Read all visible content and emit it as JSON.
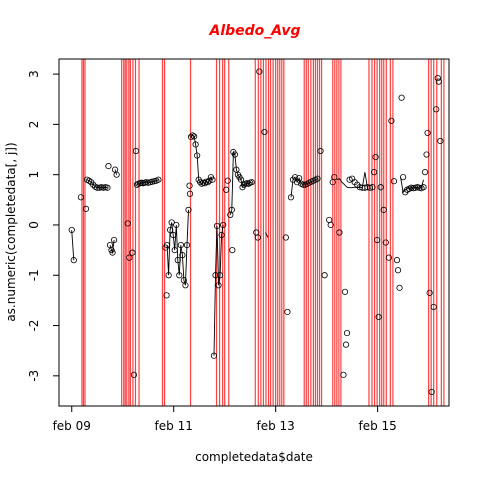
{
  "chart_data": {
    "type": "scatter",
    "title": "Albedo_Avg",
    "title_color": "#ff0000",
    "xlabel": "completedata$date",
    "ylabel": "as.numeric(completedata[, j])",
    "xlim": [
      -0.25,
      7.4
    ],
    "ylim": [
      -3.6,
      3.3
    ],
    "xticks": [
      {
        "value": 0,
        "label": "feb 09"
      },
      {
        "value": 2,
        "label": "feb 11"
      },
      {
        "value": 4,
        "label": "feb 13"
      },
      {
        "value": 6,
        "label": "feb 15"
      }
    ],
    "yticks": [
      {
        "value": -3,
        "label": "-3"
      },
      {
        "value": -2,
        "label": "-2"
      },
      {
        "value": -1,
        "label": "-1"
      },
      {
        "value": 0,
        "label": "0"
      },
      {
        "value": 1,
        "label": "1"
      },
      {
        "value": 2,
        "label": "2"
      },
      {
        "value": 3,
        "label": "3"
      }
    ],
    "vline_color": "#ff2020",
    "point_color": "#000000",
    "vlines": [
      0.2,
      0.23,
      0.26,
      0.98,
      1.02,
      1.05,
      1.08,
      1.12,
      1.15,
      1.2,
      1.25,
      1.32,
      1.78,
      1.82,
      2.33,
      2.84,
      2.9,
      2.96,
      3.0,
      3.08,
      3.6,
      3.66,
      3.71,
      3.76,
      3.81,
      3.86,
      3.9,
      3.95,
      4.0,
      4.04,
      4.08,
      4.12,
      4.16,
      4.56,
      4.6,
      4.64,
      4.69,
      4.74,
      4.78,
      4.82,
      4.86,
      4.9,
      5.12,
      5.16,
      5.2,
      5.24,
      5.28,
      5.83,
      5.89,
      5.94,
      5.99,
      6.04,
      6.08,
      6.12,
      6.17,
      6.25,
      6.3,
      7.0,
      7.05,
      7.1,
      7.16,
      7.25,
      7.3
    ],
    "segments": [
      {
        "x": [
          0.0,
          0.04
        ],
        "y": [
          -0.1,
          -0.7
        ]
      },
      {
        "x": [
          0.3,
          0.34,
          0.38,
          0.42,
          0.46,
          0.5,
          0.54,
          0.58,
          0.62,
          0.66,
          0.7
        ],
        "y": [
          0.9,
          0.88,
          0.85,
          0.8,
          0.76,
          0.74,
          0.74,
          0.75,
          0.74,
          0.75,
          0.74
        ]
      },
      {
        "x": [
          0.75,
          0.78,
          0.8,
          0.83
        ],
        "y": [
          -0.4,
          -0.5,
          -0.55,
          -0.3
        ]
      },
      {
        "x": [
          0.85,
          0.88
        ],
        "y": [
          1.1,
          1.0
        ]
      },
      {
        "x": [
          1.28,
          1.31,
          1.34,
          1.37,
          1.4,
          1.43,
          1.46,
          1.5,
          1.54,
          1.58,
          1.62,
          1.66,
          1.7
        ],
        "y": [
          0.8,
          0.82,
          0.83,
          0.84,
          0.83,
          0.84,
          0.85,
          0.84,
          0.85,
          0.86,
          0.87,
          0.88,
          0.9
        ]
      },
      {
        "x": [
          1.87,
          1.9,
          1.93,
          1.96,
          1.99,
          2.02,
          2.05,
          2.08,
          2.11,
          2.14,
          2.17,
          2.2,
          2.23,
          2.26,
          2.29
        ],
        "y": [
          -0.4,
          -1.0,
          -0.1,
          0.05,
          -0.2,
          -0.5,
          0.0,
          -0.7,
          -1.0,
          -0.4,
          -0.6,
          -1.1,
          -1.2,
          -0.4,
          0.3
        ]
      },
      {
        "x": [
          2.34,
          2.37,
          2.4,
          2.43,
          2.46,
          2.49,
          2.52,
          2.55,
          2.58,
          2.61,
          2.64,
          2.67,
          2.7,
          2.73,
          2.76
        ],
        "y": [
          1.75,
          1.78,
          1.76,
          1.6,
          1.38,
          0.9,
          0.85,
          0.82,
          0.84,
          0.83,
          0.86,
          0.85,
          0.88,
          0.95,
          0.9
        ]
      },
      {
        "x": [
          2.79,
          2.82,
          2.85,
          2.88,
          2.91,
          2.94,
          2.97
        ],
        "y": [
          -2.6,
          -1.0,
          -0.02,
          -1.2,
          -1.0,
          -0.2,
          0.0
        ]
      },
      {
        "x": [
          3.11,
          3.14,
          3.17,
          3.2,
          3.23,
          3.26,
          3.29,
          3.32,
          3.35,
          3.38,
          3.41,
          3.44,
          3.47,
          3.5,
          3.53
        ],
        "y": [
          0.2,
          0.3,
          1.45,
          1.4,
          1.1,
          1.0,
          0.95,
          0.9,
          0.75,
          0.8,
          0.82,
          0.83,
          0.82,
          0.84,
          0.85
        ]
      },
      {
        "x": [
          3.8,
          3.85
        ],
        "y": [
          -0.15,
          -0.25
        ]
      },
      {
        "x": [
          4.3,
          4.34,
          4.38,
          4.42,
          4.46,
          4.5,
          4.54
        ],
        "y": [
          0.55,
          0.9,
          0.95,
          0.85,
          0.93,
          0.82,
          0.8
        ]
      },
      {
        "x": [
          4.58,
          4.62,
          4.66,
          4.7,
          4.74,
          4.78,
          4.82
        ],
        "y": [
          0.8,
          0.82,
          0.84,
          0.86,
          0.88,
          0.9,
          0.92
        ]
      },
      {
        "x": [
          5.2,
          5.25,
          5.3,
          5.35,
          5.4,
          5.45,
          5.5,
          5.55,
          5.6,
          5.65,
          5.7,
          5.75,
          5.8
        ],
        "y": [
          0.9,
          0.92,
          0.85,
          0.8,
          0.75,
          0.74,
          0.74,
          0.75,
          0.74,
          0.75,
          0.74,
          1.05,
          0.75
        ]
      },
      {
        "x": [
          6.45,
          6.5,
          6.54,
          6.58,
          6.62,
          6.66,
          6.7,
          6.74,
          6.78,
          6.82,
          6.86,
          6.9
        ],
        "y": [
          0.95,
          0.65,
          0.7,
          0.72,
          0.74,
          0.73,
          0.74,
          0.75,
          0.74,
          0.73,
          0.75,
          0.9
        ]
      }
    ],
    "points": [
      {
        "x": 0.0,
        "y": -0.1
      },
      {
        "x": 0.04,
        "y": -0.7
      },
      {
        "x": 0.18,
        "y": 0.55
      },
      {
        "x": 0.28,
        "y": 0.32
      },
      {
        "x": 0.3,
        "y": 0.9
      },
      {
        "x": 0.34,
        "y": 0.88
      },
      {
        "x": 0.38,
        "y": 0.85
      },
      {
        "x": 0.42,
        "y": 0.8
      },
      {
        "x": 0.46,
        "y": 0.76
      },
      {
        "x": 0.5,
        "y": 0.74
      },
      {
        "x": 0.54,
        "y": 0.74
      },
      {
        "x": 0.58,
        "y": 0.75
      },
      {
        "x": 0.62,
        "y": 0.74
      },
      {
        "x": 0.66,
        "y": 0.75
      },
      {
        "x": 0.7,
        "y": 0.74
      },
      {
        "x": 0.72,
        "y": 1.17
      },
      {
        "x": 0.75,
        "y": -0.4
      },
      {
        "x": 0.78,
        "y": -0.5
      },
      {
        "x": 0.8,
        "y": -0.55
      },
      {
        "x": 0.83,
        "y": -0.3
      },
      {
        "x": 0.85,
        "y": 1.1
      },
      {
        "x": 0.88,
        "y": 1.0
      },
      {
        "x": 1.1,
        "y": 0.03
      },
      {
        "x": 1.13,
        "y": -0.65
      },
      {
        "x": 1.19,
        "y": -0.55
      },
      {
        "x": 1.22,
        "y": -2.98
      },
      {
        "x": 1.26,
        "y": 1.47
      },
      {
        "x": 1.28,
        "y": 0.8
      },
      {
        "x": 1.31,
        "y": 0.82
      },
      {
        "x": 1.34,
        "y": 0.83
      },
      {
        "x": 1.37,
        "y": 0.84
      },
      {
        "x": 1.4,
        "y": 0.83
      },
      {
        "x": 1.43,
        "y": 0.84
      },
      {
        "x": 1.46,
        "y": 0.85
      },
      {
        "x": 1.5,
        "y": 0.84
      },
      {
        "x": 1.54,
        "y": 0.85
      },
      {
        "x": 1.58,
        "y": 0.86
      },
      {
        "x": 1.62,
        "y": 0.87
      },
      {
        "x": 1.66,
        "y": 0.88
      },
      {
        "x": 1.7,
        "y": 0.9
      },
      {
        "x": 1.84,
        "y": -0.45
      },
      {
        "x": 1.86,
        "y": -1.4
      },
      {
        "x": 1.87,
        "y": -0.4
      },
      {
        "x": 1.9,
        "y": -1.0
      },
      {
        "x": 1.93,
        "y": -0.1
      },
      {
        "x": 1.96,
        "y": 0.05
      },
      {
        "x": 1.99,
        "y": -0.2
      },
      {
        "x": 2.02,
        "y": -0.5
      },
      {
        "x": 2.05,
        "y": 0.0
      },
      {
        "x": 2.08,
        "y": -0.7
      },
      {
        "x": 2.11,
        "y": -1.0
      },
      {
        "x": 2.14,
        "y": -0.4
      },
      {
        "x": 2.17,
        "y": -0.6
      },
      {
        "x": 2.2,
        "y": -1.1
      },
      {
        "x": 2.23,
        "y": -1.2
      },
      {
        "x": 2.26,
        "y": -0.4
      },
      {
        "x": 2.29,
        "y": 0.3
      },
      {
        "x": 2.31,
        "y": 0.78
      },
      {
        "x": 2.32,
        "y": 0.62
      },
      {
        "x": 2.34,
        "y": 1.75
      },
      {
        "x": 2.37,
        "y": 1.78
      },
      {
        "x": 2.4,
        "y": 1.76
      },
      {
        "x": 2.43,
        "y": 1.6
      },
      {
        "x": 2.46,
        "y": 1.38
      },
      {
        "x": 2.49,
        "y": 0.9
      },
      {
        "x": 2.52,
        "y": 0.85
      },
      {
        "x": 2.55,
        "y": 0.82
      },
      {
        "x": 2.58,
        "y": 0.84
      },
      {
        "x": 2.61,
        "y": 0.83
      },
      {
        "x": 2.64,
        "y": 0.86
      },
      {
        "x": 2.67,
        "y": 0.85
      },
      {
        "x": 2.7,
        "y": 0.88
      },
      {
        "x": 2.73,
        "y": 0.95
      },
      {
        "x": 2.76,
        "y": 0.9
      },
      {
        "x": 2.79,
        "y": -2.6
      },
      {
        "x": 2.82,
        "y": -1.0
      },
      {
        "x": 2.85,
        "y": -0.02
      },
      {
        "x": 2.88,
        "y": -1.2
      },
      {
        "x": 2.91,
        "y": -1.0
      },
      {
        "x": 2.94,
        "y": -0.2
      },
      {
        "x": 2.97,
        "y": 0.0
      },
      {
        "x": 3.03,
        "y": 0.7
      },
      {
        "x": 3.06,
        "y": 0.88
      },
      {
        "x": 3.11,
        "y": 0.2
      },
      {
        "x": 3.14,
        "y": 0.3
      },
      {
        "x": 3.17,
        "y": 1.45
      },
      {
        "x": 3.2,
        "y": 1.4
      },
      {
        "x": 3.23,
        "y": 1.1
      },
      {
        "x": 3.26,
        "y": 1.0
      },
      {
        "x": 3.29,
        "y": 0.95
      },
      {
        "x": 3.32,
        "y": 0.9
      },
      {
        "x": 3.35,
        "y": 0.75
      },
      {
        "x": 3.38,
        "y": 0.8
      },
      {
        "x": 3.41,
        "y": 0.82
      },
      {
        "x": 3.44,
        "y": 0.83
      },
      {
        "x": 3.47,
        "y": 0.82
      },
      {
        "x": 3.5,
        "y": 0.84
      },
      {
        "x": 3.53,
        "y": 0.85
      },
      {
        "x": 3.15,
        "y": -0.5
      },
      {
        "x": 3.62,
        "y": -0.15
      },
      {
        "x": 3.65,
        "y": -0.25
      },
      {
        "x": 3.68,
        "y": 3.05
      },
      {
        "x": 3.78,
        "y": 1.85
      },
      {
        "x": 4.2,
        "y": -0.25
      },
      {
        "x": 4.23,
        "y": -1.73
      },
      {
        "x": 4.3,
        "y": 0.55
      },
      {
        "x": 4.34,
        "y": 0.9
      },
      {
        "x": 4.38,
        "y": 0.95
      },
      {
        "x": 4.42,
        "y": 0.85
      },
      {
        "x": 4.46,
        "y": 0.93
      },
      {
        "x": 4.5,
        "y": 0.82
      },
      {
        "x": 4.54,
        "y": 0.8
      },
      {
        "x": 4.58,
        "y": 0.8
      },
      {
        "x": 4.62,
        "y": 0.82
      },
      {
        "x": 4.66,
        "y": 0.84
      },
      {
        "x": 4.7,
        "y": 0.86
      },
      {
        "x": 4.74,
        "y": 0.88
      },
      {
        "x": 4.78,
        "y": 0.9
      },
      {
        "x": 4.82,
        "y": 0.92
      },
      {
        "x": 4.88,
        "y": 1.47
      },
      {
        "x": 4.96,
        "y": -1.0
      },
      {
        "x": 5.05,
        "y": 0.1
      },
      {
        "x": 5.08,
        "y": 0.0
      },
      {
        "x": 5.12,
        "y": 0.85
      },
      {
        "x": 5.15,
        "y": 0.95
      },
      {
        "x": 5.25,
        "y": -0.15
      },
      {
        "x": 5.33,
        "y": -2.98
      },
      {
        "x": 5.36,
        "y": -1.33
      },
      {
        "x": 5.38,
        "y": -2.38
      },
      {
        "x": 5.4,
        "y": -2.15
      },
      {
        "x": 5.45,
        "y": 0.9
      },
      {
        "x": 5.5,
        "y": 0.92
      },
      {
        "x": 5.55,
        "y": 0.85
      },
      {
        "x": 5.6,
        "y": 0.8
      },
      {
        "x": 5.65,
        "y": 0.75
      },
      {
        "x": 5.7,
        "y": 0.74
      },
      {
        "x": 5.75,
        "y": 0.74
      },
      {
        "x": 5.8,
        "y": 0.75
      },
      {
        "x": 5.85,
        "y": 0.74
      },
      {
        "x": 5.9,
        "y": 0.75
      },
      {
        "x": 5.93,
        "y": 1.05
      },
      {
        "x": 5.96,
        "y": 1.35
      },
      {
        "x": 5.99,
        "y": -0.3
      },
      {
        "x": 6.02,
        "y": -1.83
      },
      {
        "x": 6.06,
        "y": 0.75
      },
      {
        "x": 6.12,
        "y": 0.3
      },
      {
        "x": 6.16,
        "y": -0.35
      },
      {
        "x": 6.22,
        "y": -0.65
      },
      {
        "x": 6.27,
        "y": 2.07
      },
      {
        "x": 6.32,
        "y": 0.87
      },
      {
        "x": 6.38,
        "y": -0.7
      },
      {
        "x": 6.4,
        "y": -0.9
      },
      {
        "x": 6.43,
        "y": -1.25
      },
      {
        "x": 6.47,
        "y": 2.53
      },
      {
        "x": 6.5,
        "y": 0.95
      },
      {
        "x": 6.54,
        "y": 0.65
      },
      {
        "x": 6.58,
        "y": 0.7
      },
      {
        "x": 6.62,
        "y": 0.72
      },
      {
        "x": 6.66,
        "y": 0.74
      },
      {
        "x": 6.7,
        "y": 0.73
      },
      {
        "x": 6.74,
        "y": 0.74
      },
      {
        "x": 6.78,
        "y": 0.75
      },
      {
        "x": 6.82,
        "y": 0.74
      },
      {
        "x": 6.86,
        "y": 0.73
      },
      {
        "x": 6.9,
        "y": 0.75
      },
      {
        "x": 6.93,
        "y": 1.05
      },
      {
        "x": 6.96,
        "y": 1.4
      },
      {
        "x": 6.98,
        "y": 1.83
      },
      {
        "x": 7.02,
        "y": -1.35
      },
      {
        "x": 7.06,
        "y": -3.32
      },
      {
        "x": 7.1,
        "y": -1.63
      },
      {
        "x": 7.15,
        "y": 2.3
      },
      {
        "x": 7.18,
        "y": 2.92
      },
      {
        "x": 7.2,
        "y": 2.85
      },
      {
        "x": 7.23,
        "y": 1.67
      }
    ]
  }
}
